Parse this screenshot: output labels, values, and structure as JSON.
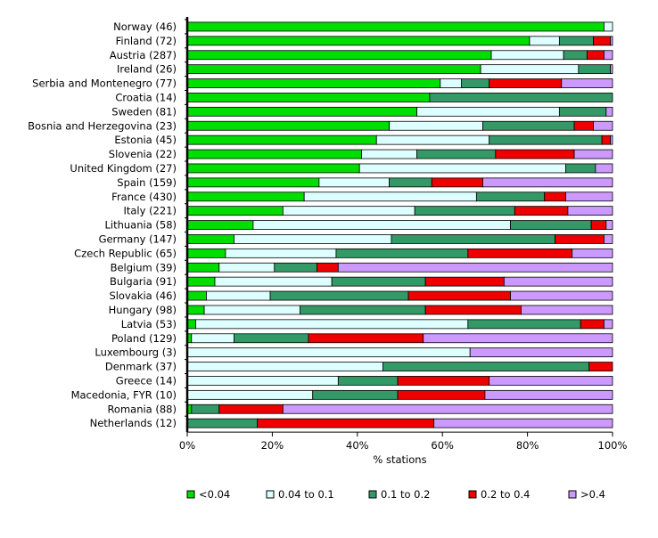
{
  "chart_data": {
    "type": "bar",
    "orientation": "horizontal",
    "stacked": true,
    "xlabel": "% stations",
    "xlim": [
      0,
      100
    ],
    "xticks": [
      "0%",
      "20%",
      "40%",
      "60%",
      "80%",
      "100%"
    ],
    "categories": [
      "Norway (46)",
      "Finland (72)",
      "Austria (287)",
      "Ireland (26)",
      "Serbia and Montenegro (77)",
      "Croatia (14)",
      "Sweden (81)",
      "Bosnia and Herzegovina (23)",
      "Estonia (45)",
      "Slovenia (22)",
      "United Kingdom (27)",
      "Spain (159)",
      "France (430)",
      "Italy (221)",
      "Lithuania (58)",
      "Germany (147)",
      "Czech Republic (65)",
      "Belgium (39)",
      "Bulgaria (91)",
      "Slovakia (46)",
      "Hungary (98)",
      "Latvia (53)",
      "Poland (129)",
      "Luxembourg (3)",
      "Denmark (37)",
      "Greece (14)",
      "Macedonia, FYR (10)",
      "Romania (88)",
      "Netherlands (12)"
    ],
    "series": [
      {
        "name": "<0.04",
        "color": "#00dd00",
        "values": [
          98,
          80.5,
          71.5,
          69,
          59.5,
          57,
          54,
          47.5,
          44.5,
          41,
          40.5,
          31,
          27.5,
          22.5,
          15.5,
          11,
          9,
          7.5,
          6.5,
          4.5,
          4,
          2,
          1,
          0,
          0,
          0,
          0,
          1,
          0
        ]
      },
      {
        "name": "0.04 to 0.1",
        "color": "#ddffff",
        "values": [
          2,
          7,
          17,
          23,
          5,
          0,
          33.5,
          22,
          26.5,
          13,
          48.5,
          16.5,
          40.5,
          31,
          60.5,
          37,
          26,
          13,
          27.5,
          15,
          22.5,
          64,
          10,
          66.5,
          46,
          35.5,
          29.5,
          0,
          0
        ]
      },
      {
        "name": "0.1 to 0.2",
        "color": "#339966",
        "values": [
          0,
          8,
          5.5,
          7.5,
          6.5,
          43,
          11,
          21.5,
          26.5,
          18.5,
          7,
          10,
          16,
          23.5,
          19,
          38.5,
          31,
          10,
          22,
          32.5,
          29.5,
          26.5,
          17.5,
          0,
          48.5,
          14,
          20,
          6.5,
          16.5
        ]
      },
      {
        "name": "0.2 to 0.4",
        "color": "#ee0000",
        "values": [
          0,
          4,
          4,
          0,
          17,
          0,
          0,
          4.5,
          2,
          18.5,
          0,
          12,
          5,
          12.5,
          3.5,
          11.5,
          24.5,
          5,
          18.5,
          24,
          22.5,
          5.5,
          27,
          0,
          5.5,
          21.5,
          20.5,
          15,
          41.5
        ]
      },
      {
        "name": ">0.4",
        "color": "#cc99ff",
        "values": [
          0,
          0.5,
          2,
          0.5,
          12,
          0,
          1.5,
          4.5,
          0.5,
          9,
          4,
          30.5,
          11,
          10.5,
          1.5,
          2,
          9.5,
          64.5,
          25.5,
          24,
          21.5,
          2,
          44.5,
          33.5,
          0,
          29,
          30,
          77.5,
          42
        ]
      }
    ],
    "legend_position": "bottom",
    "grid": false
  }
}
